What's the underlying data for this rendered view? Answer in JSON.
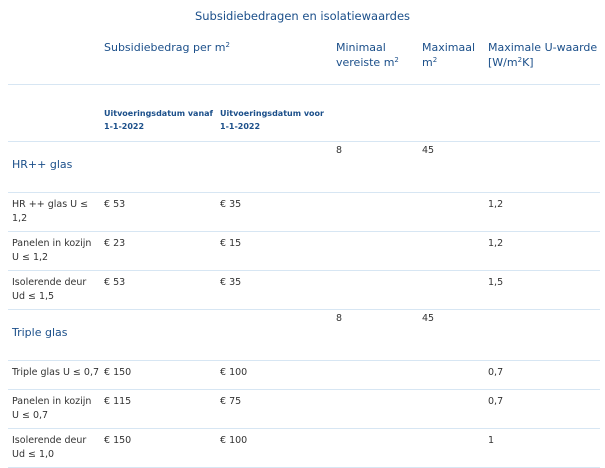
{
  "caption": "Subsidiebedragen en isolatiewaardes",
  "header": {
    "subsidie": "Subsidiebedrag per m",
    "subsidie_sup": "2",
    "min_l1": "Minimaal",
    "min_l2": "vereiste m",
    "min_sup": "2",
    "max_l1": "Maximaal",
    "max_l2": "m",
    "max_sup": "2",
    "u_l1": "Maximale U-waarde",
    "u_l2a": "[W/m",
    "u_sup": "2",
    "u_l2b": "K]"
  },
  "subheader": {
    "vanaf_l1": "Uitvoeringsdatum vanaf",
    "vanaf_l2": "1-1-2022",
    "voor_l1": "Uitvoeringsdatum voor",
    "voor_l2": "1-1-2022"
  },
  "groups": [
    {
      "name": "HR++ glas",
      "min": "8",
      "max": "45",
      "rows": [
        {
          "l1": "HR ++ glas U ≤",
          "l2": "1,2",
          "vanaf": "€ 53",
          "voor": "€ 35",
          "u": "1,2"
        },
        {
          "l1": "Panelen in kozijn",
          "l2": "U ≤ 1,2",
          "vanaf": "€ 23",
          "voor": "€ 15",
          "u": "1,2"
        },
        {
          "l1": "Isolerende deur",
          "l2": "Ud ≤ 1,5",
          "vanaf": "€ 53",
          "voor": "€ 35",
          "u": "1,5"
        }
      ]
    },
    {
      "name": "Triple glas",
      "min": "8",
      "max": "45",
      "rows": [
        {
          "l1": "Triple glas U ≤ 0,7",
          "l2": "",
          "vanaf": "€ 150",
          "voor": "€ 100",
          "u": "0,7"
        },
        {
          "l1": "Panelen in kozijn",
          "l2": "U ≤ 0,7",
          "vanaf": "€ 115",
          "voor": "€ 75",
          "u": "0,7"
        },
        {
          "l1": "Isolerende deur",
          "l2": "Ud ≤ 1,0",
          "vanaf": "€ 150",
          "voor": "€ 100",
          "u": "1"
        }
      ]
    }
  ]
}
